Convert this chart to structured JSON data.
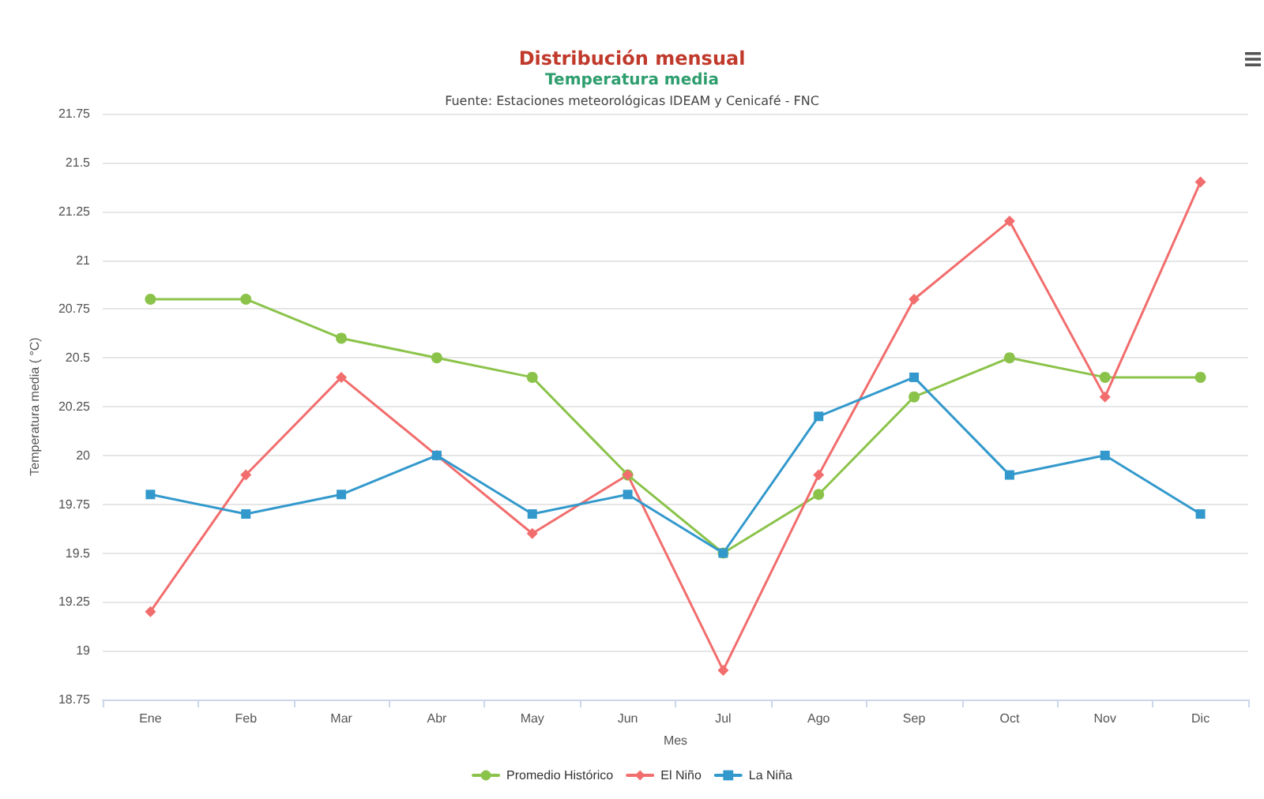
{
  "chart_data": {
    "type": "line",
    "title": "Distribución mensual",
    "subtitle": "Temperatura media",
    "annotations": [
      "Fuente: Estaciones meteorológicas IDEAM y Cenicafé - FNC"
    ],
    "xlabel": "Mes",
    "ylabel": "Temperatura media ( °C)",
    "categories": [
      "Ene",
      "Feb",
      "Mar",
      "Abr",
      "May",
      "Jun",
      "Jul",
      "Ago",
      "Sep",
      "Oct",
      "Nov",
      "Dic"
    ],
    "series": [
      {
        "name": "Promedio Histórico",
        "color": "#8bc34a",
        "marker": "circle",
        "values": [
          20.8,
          20.8,
          20.6,
          20.5,
          20.4,
          19.9,
          19.5,
          19.8,
          20.3,
          20.5,
          20.4,
          20.4
        ]
      },
      {
        "name": "El Niño",
        "color": "#f26d6d",
        "marker": "diamond",
        "values": [
          19.2,
          19.9,
          20.4,
          20.0,
          19.6,
          19.9,
          18.9,
          19.9,
          20.8,
          21.2,
          20.3,
          21.4
        ]
      },
      {
        "name": "La Niña",
        "color": "#3399cc",
        "marker": "square",
        "values": [
          19.8,
          19.7,
          19.8,
          20.0,
          19.7,
          19.8,
          19.5,
          20.2,
          20.4,
          19.9,
          20.0,
          19.7
        ]
      }
    ],
    "ylim": [
      18.75,
      21.75
    ],
    "yticks": [
      18.75,
      19,
      19.25,
      19.5,
      19.75,
      20,
      20.25,
      20.5,
      20.75,
      21,
      21.25,
      21.5,
      21.75
    ],
    "grid": "y",
    "legend": "bottom",
    "line_style": "solid"
  }
}
